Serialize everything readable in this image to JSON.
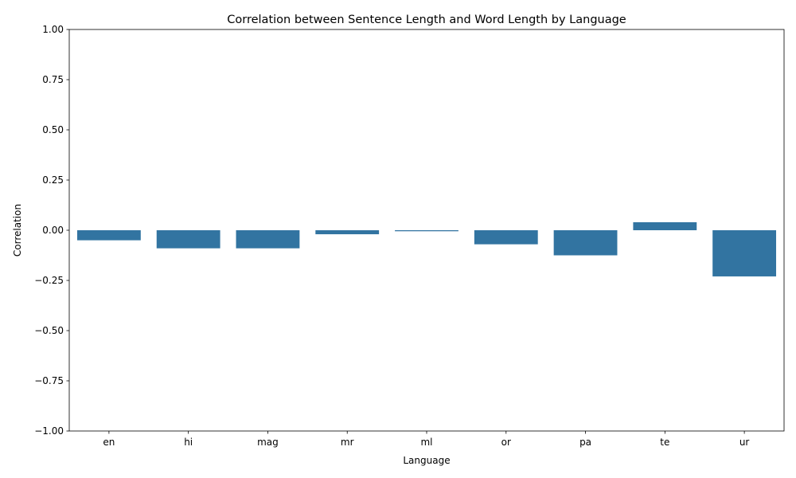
{
  "chart_data": {
    "type": "bar",
    "title": "Correlation between Sentence Length and Word Length by Language",
    "xlabel": "Language",
    "ylabel": "Correlation",
    "categories": [
      "en",
      "hi",
      "mag",
      "mr",
      "ml",
      "or",
      "pa",
      "te",
      "ur"
    ],
    "values": [
      -0.05,
      -0.09,
      -0.09,
      -0.02,
      -0.005,
      -0.07,
      -0.125,
      0.04,
      -0.23
    ],
    "ylim": [
      -1.0,
      1.0
    ],
    "yticks": [
      -1.0,
      -0.75,
      -0.5,
      -0.25,
      0.0,
      0.25,
      0.5,
      0.75,
      1.0
    ],
    "ytick_labels": [
      "−1.00",
      "−0.75",
      "−0.50",
      "−0.25",
      "0.00",
      "0.25",
      "0.50",
      "0.75",
      "1.00"
    ],
    "grid": false,
    "bar_color": "#3274a1"
  }
}
